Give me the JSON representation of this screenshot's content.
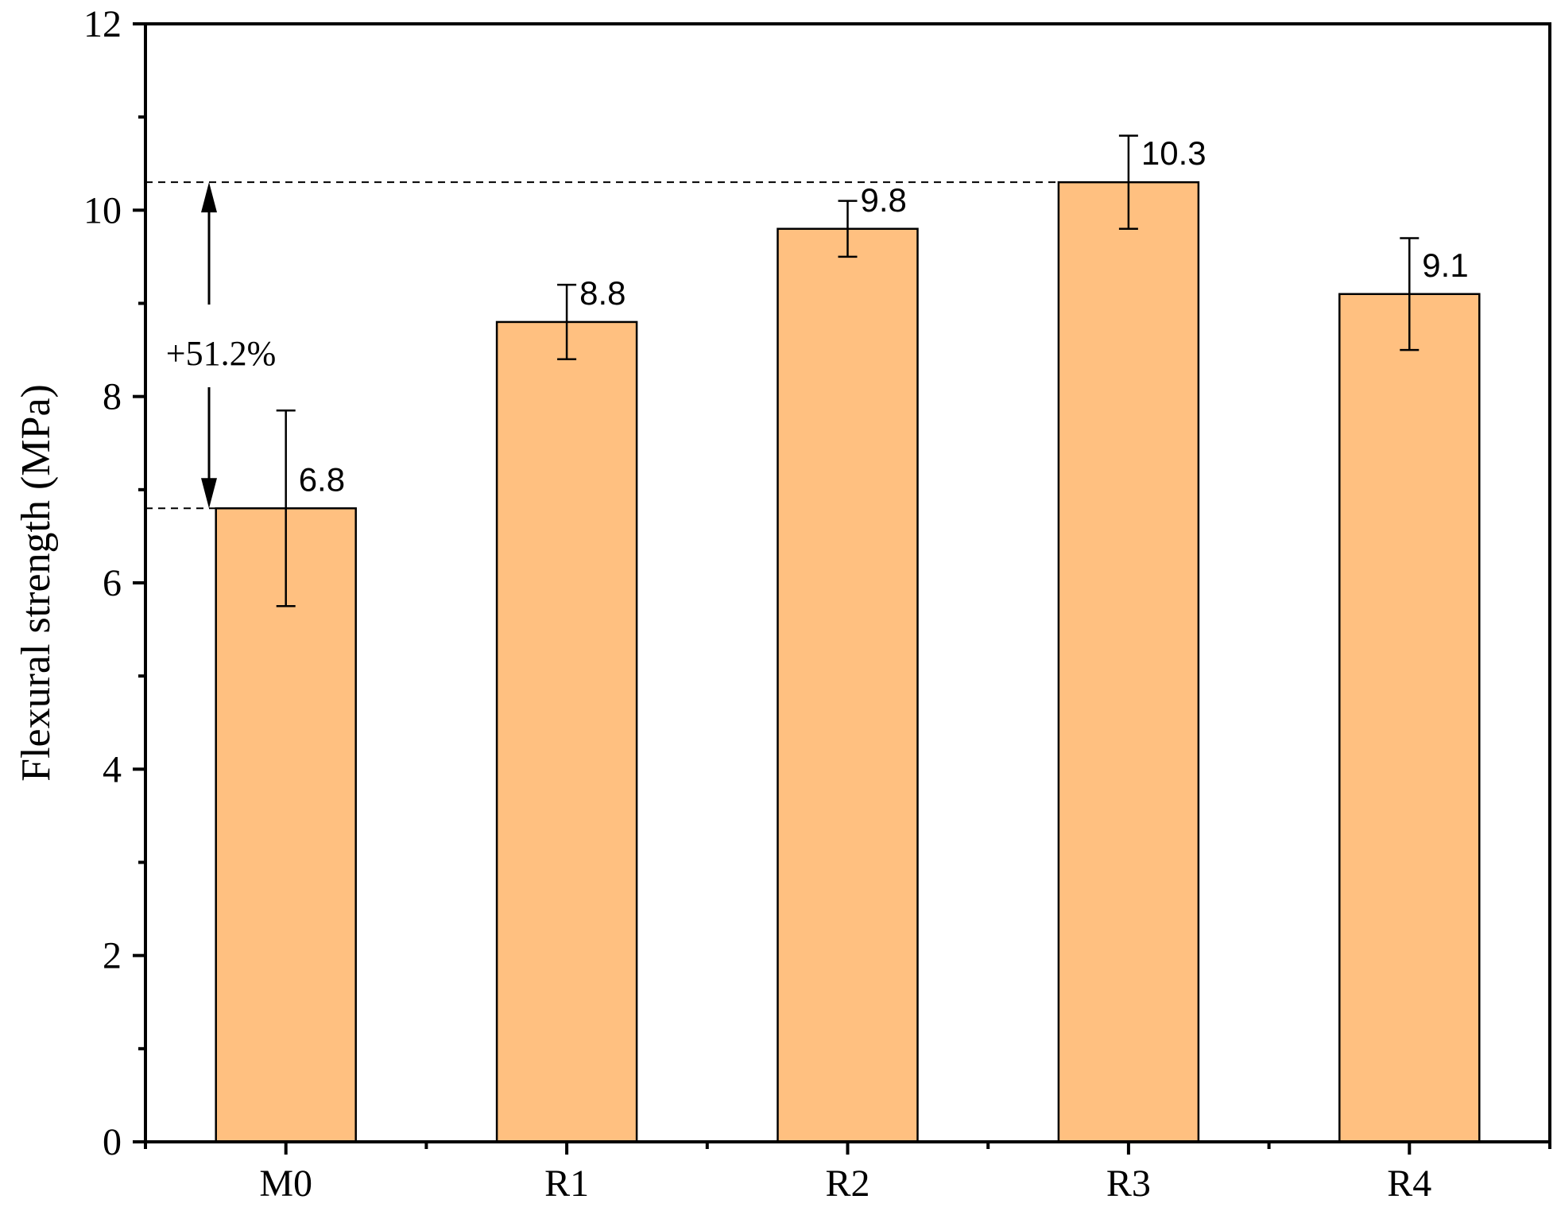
{
  "chart_data": {
    "type": "bar",
    "categories": [
      "M0",
      "R1",
      "R2",
      "R3",
      "R4"
    ],
    "values": [
      6.8,
      8.8,
      9.8,
      10.3,
      9.1
    ],
    "error_low": [
      5.75,
      8.4,
      9.5,
      9.8,
      8.5
    ],
    "error_high": [
      7.85,
      9.2,
      10.1,
      10.8,
      9.7
    ],
    "data_labels": [
      "6.8",
      "8.8",
      "9.8",
      "10.3",
      "9.1"
    ],
    "title": "",
    "xlabel": "",
    "ylabel": "Flexural strength (MPa)",
    "ylim": [
      0,
      12
    ],
    "y_ticks": [
      0,
      2,
      4,
      6,
      8,
      10,
      12
    ],
    "y_tick_labels": [
      "0",
      "2",
      "4",
      "6",
      "8",
      "10",
      "12"
    ],
    "bar_color": "#FFC080",
    "grid": false,
    "legend": "none",
    "annotation": {
      "text": "+51.2%",
      "from_value": 6.8,
      "to_value": 10.3
    }
  }
}
